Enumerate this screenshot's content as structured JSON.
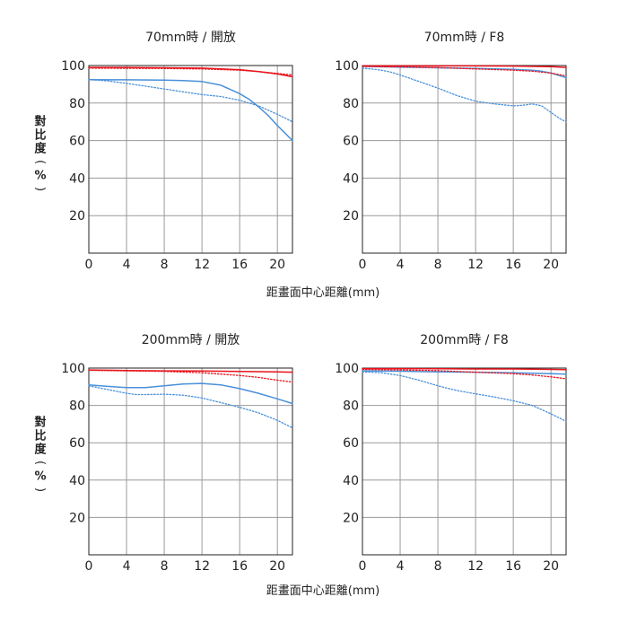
{
  "y_axis_label": "對比度(%)",
  "x_axis_label": "距畫面中心距離(mm)",
  "chart_data": [
    {
      "type": "line",
      "title": "70mm時 / 開放",
      "xlim": [
        0,
        21.6
      ],
      "ylim": [
        0,
        100
      ],
      "xticks": [
        0,
        4,
        8,
        12,
        16,
        20
      ],
      "yticks": [
        20,
        40,
        60,
        80,
        100
      ],
      "grid": true,
      "series": [
        {
          "style": "solid",
          "color": "#e8141c",
          "x": [
            0,
            4,
            8,
            12,
            16,
            18,
            20,
            21.6
          ],
          "y": [
            99,
            99,
            98.8,
            98.6,
            97.8,
            96.8,
            95.5,
            94
          ]
        },
        {
          "style": "dotted",
          "color": "#e8141c",
          "x": [
            0,
            4,
            8,
            12,
            16,
            18,
            20,
            21.6
          ],
          "y": [
            98.6,
            98.5,
            98.4,
            98.2,
            97.5,
            96.8,
            95.8,
            95
          ]
        },
        {
          "style": "solid",
          "color": "#4a90d9",
          "x": [
            0,
            4,
            8,
            10,
            12,
            14,
            16,
            17,
            18,
            19,
            20,
            21,
            21.6
          ],
          "y": [
            92.5,
            92.4,
            92.2,
            92,
            91.5,
            89.5,
            85,
            82,
            78,
            73.5,
            68,
            63,
            60
          ]
        },
        {
          "style": "dotted",
          "color": "#4a90d9",
          "x": [
            0,
            2,
            4,
            6,
            8,
            10,
            12,
            14,
            16,
            18,
            20,
            21.6
          ],
          "y": [
            92.5,
            91.8,
            90.5,
            89,
            87.5,
            86,
            84.5,
            83.5,
            81.5,
            78.5,
            74,
            70
          ]
        }
      ]
    },
    {
      "type": "line",
      "title": "70mm時 / F8",
      "xlim": [
        0,
        21.6
      ],
      "ylim": [
        0,
        100
      ],
      "xticks": [
        0,
        4,
        8,
        12,
        16,
        20
      ],
      "yticks": [
        20,
        40,
        60,
        80,
        100
      ],
      "grid": true,
      "series": [
        {
          "style": "solid",
          "color": "#e8141c",
          "x": [
            0,
            4,
            8,
            12,
            16,
            20,
            21.6
          ],
          "y": [
            99.8,
            99.8,
            99.8,
            99.8,
            99.7,
            99.4,
            99
          ]
        },
        {
          "style": "dotted",
          "color": "#e8141c",
          "x": [
            0,
            4,
            8,
            12,
            16,
            18,
            20,
            21.6
          ],
          "y": [
            99.5,
            99.3,
            98.9,
            98.2,
            97.5,
            97,
            96,
            94.5
          ]
        },
        {
          "style": "solid",
          "color": "#4a90d9",
          "x": [
            0,
            4,
            8,
            12,
            16,
            18,
            19,
            20,
            21,
            21.6
          ],
          "y": [
            99.5,
            99.2,
            98.8,
            98.4,
            98,
            97.5,
            97,
            96,
            94.5,
            93.5
          ]
        },
        {
          "style": "dotted",
          "color": "#4a90d9",
          "x": [
            0,
            1,
            2,
            3,
            4,
            6,
            8,
            10,
            12,
            14,
            16,
            17,
            18,
            19,
            20,
            21,
            21.6
          ],
          "y": [
            98.5,
            98.2,
            97.5,
            96.5,
            95,
            91.5,
            88,
            84,
            81,
            79.5,
            78.5,
            78.8,
            79.5,
            78.5,
            75,
            71.5,
            70
          ]
        }
      ]
    },
    {
      "type": "line",
      "title": "200mm時 / 開放",
      "xlim": [
        0,
        21.6
      ],
      "ylim": [
        0,
        100
      ],
      "xticks": [
        0,
        4,
        8,
        12,
        16,
        20
      ],
      "yticks": [
        20,
        40,
        60,
        80,
        100
      ],
      "grid": true,
      "series": [
        {
          "style": "solid",
          "color": "#e8141c",
          "x": [
            0,
            4,
            8,
            12,
            16,
            20,
            21.6
          ],
          "y": [
            99,
            98.7,
            98.5,
            98.4,
            98.2,
            98,
            97.8
          ]
        },
        {
          "style": "dotted",
          "color": "#e8141c",
          "x": [
            0,
            4,
            8,
            12,
            14,
            16,
            18,
            20,
            21.6
          ],
          "y": [
            98.8,
            98.5,
            98.2,
            97.5,
            96.8,
            96,
            95,
            93.5,
            92.5
          ]
        },
        {
          "style": "solid",
          "color": "#4a90d9",
          "x": [
            0,
            2,
            4,
            6,
            8,
            10,
            12,
            14,
            16,
            18,
            20,
            21.6
          ],
          "y": [
            91,
            90.2,
            89.5,
            89.5,
            90.5,
            91.5,
            91.8,
            91,
            89,
            86.5,
            83.5,
            81
          ]
        },
        {
          "style": "dotted",
          "color": "#4a90d9",
          "x": [
            0,
            2,
            4,
            5,
            6,
            8,
            10,
            12,
            14,
            16,
            18,
            20,
            21.6
          ],
          "y": [
            90.5,
            88.5,
            86.5,
            85.8,
            85.8,
            86,
            85.5,
            84,
            81.5,
            79,
            76,
            72,
            68
          ]
        }
      ]
    },
    {
      "type": "line",
      "title": "200mm時 / F8",
      "xlim": [
        0,
        21.6
      ],
      "ylim": [
        0,
        100
      ],
      "xticks": [
        0,
        4,
        8,
        12,
        16,
        20
      ],
      "yticks": [
        20,
        40,
        60,
        80,
        100
      ],
      "grid": true,
      "series": [
        {
          "style": "solid",
          "color": "#e8141c",
          "x": [
            0,
            4,
            8,
            12,
            16,
            20,
            21.6
          ],
          "y": [
            99.7,
            99.7,
            99.6,
            99.5,
            99.5,
            99.3,
            99.2
          ]
        },
        {
          "style": "dotted",
          "color": "#e8141c",
          "x": [
            0,
            4,
            8,
            12,
            16,
            18,
            20,
            21.6
          ],
          "y": [
            99.3,
            99,
            98.6,
            97.8,
            97,
            96.3,
            95.3,
            94.3
          ]
        },
        {
          "style": "solid",
          "color": "#4a90d9",
          "x": [
            0,
            4,
            8,
            12,
            16,
            20,
            21.6
          ],
          "y": [
            98.5,
            98.3,
            98,
            97.8,
            97.5,
            97,
            96.8
          ]
        },
        {
          "style": "dotted",
          "color": "#4a90d9",
          "x": [
            0,
            2,
            4,
            6,
            8,
            10,
            12,
            14,
            16,
            18,
            20,
            21.6
          ],
          "y": [
            98,
            97.5,
            96,
            93.5,
            90.5,
            88,
            86.2,
            84.5,
            82.5,
            80,
            75.5,
            71.5
          ]
        }
      ]
    }
  ]
}
